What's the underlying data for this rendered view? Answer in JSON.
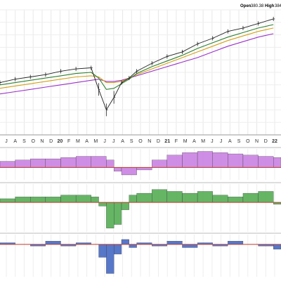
{
  "header": {
    "open_label": "Open",
    "open_value": "380.38",
    "high_label": "High",
    "high_value": "384"
  },
  "chart_data": [
    {
      "type": "line",
      "panel": "price",
      "x_labels": [
        "J",
        "A",
        "S",
        "O",
        "N",
        "D",
        "20",
        "F",
        "M",
        "A",
        "M",
        "J",
        "J",
        "A",
        "S",
        "O",
        "N",
        "D",
        "21",
        "F",
        "M",
        "A",
        "M",
        "J",
        "J",
        "A",
        "S",
        "O",
        "N",
        "D",
        "22"
      ],
      "year_labels": [
        "20",
        "21",
        "22"
      ],
      "x": [
        0,
        2,
        4,
        6,
        8,
        10,
        12,
        13,
        14,
        15,
        16,
        17,
        18,
        20,
        22,
        24,
        26,
        28,
        30,
        32,
        34,
        36
      ],
      "series": [
        {
          "key": "price",
          "color": "#222222",
          "values": [
            46,
            49,
            51,
            53,
            56,
            58,
            59,
            40,
            22,
            33,
            46,
            50,
            56,
            63,
            69,
            73,
            80,
            85,
            91,
            94,
            98,
            102
          ]
        },
        {
          "key": "ema_fast",
          "color": "#2f7f2f",
          "values": [
            44,
            46,
            48,
            50,
            52,
            54,
            55,
            50,
            40,
            41,
            45,
            49,
            54,
            60,
            65,
            70,
            76,
            81,
            86,
            90,
            94,
            97
          ]
        },
        {
          "key": "ema_mid",
          "color": "#d4a017",
          "values": [
            41,
            43,
            45,
            47,
            49,
            51,
            52,
            51,
            46,
            46,
            47,
            50,
            53,
            58,
            63,
            68,
            73,
            78,
            83,
            87,
            91,
            94
          ]
        },
        {
          "key": "ema_slow",
          "color": "#9b30c8",
          "values": [
            36,
            38,
            40,
            42,
            44,
            46,
            48,
            49,
            47,
            47,
            48,
            50,
            52,
            56,
            60,
            64,
            68,
            73,
            78,
            82,
            86,
            89
          ]
        }
      ],
      "ylim": [
        0,
        110
      ],
      "grid": true
    },
    {
      "type": "bar",
      "panel": "histogram-purple",
      "color": "#c77ae0",
      "x": [
        0,
        2,
        4,
        6,
        8,
        10,
        12,
        14,
        15,
        16,
        18,
        20,
        22,
        24,
        26,
        28,
        30,
        32,
        34,
        36
      ],
      "values": [
        5,
        6,
        7,
        7,
        8,
        9,
        9,
        6,
        -3,
        -6,
        -2,
        6,
        10,
        12,
        13,
        12,
        11,
        10,
        9,
        8
      ],
      "ylim": [
        -10,
        15
      ]
    },
    {
      "type": "bar",
      "panel": "histogram-green",
      "color": "#4aa84a",
      "x": [
        0,
        2,
        4,
        6,
        8,
        10,
        12,
        13,
        14,
        15,
        16,
        17,
        18,
        20,
        22,
        24,
        26,
        28,
        30,
        32,
        34,
        36
      ],
      "values": [
        2,
        3,
        3,
        3,
        4,
        4,
        3,
        -2,
        -14,
        -12,
        -4,
        4,
        5,
        7,
        6,
        5,
        6,
        4,
        3,
        5,
        6,
        -1
      ],
      "ylim": [
        -16,
        10
      ]
    },
    {
      "type": "bar",
      "panel": "histogram-blue",
      "color": "#3a5fbf",
      "x": [
        0,
        2,
        4,
        6,
        8,
        10,
        12,
        13,
        14,
        15,
        16,
        17,
        18,
        20,
        22,
        24,
        26,
        28,
        30,
        32,
        34,
        36
      ],
      "values": [
        1,
        0,
        -1,
        2,
        -1,
        1,
        0,
        -8,
        -18,
        -6,
        3,
        -2,
        1,
        -1,
        2,
        -2,
        1,
        -1,
        2,
        0,
        -1,
        -3
      ],
      "ylim": [
        -20,
        6
      ]
    }
  ]
}
